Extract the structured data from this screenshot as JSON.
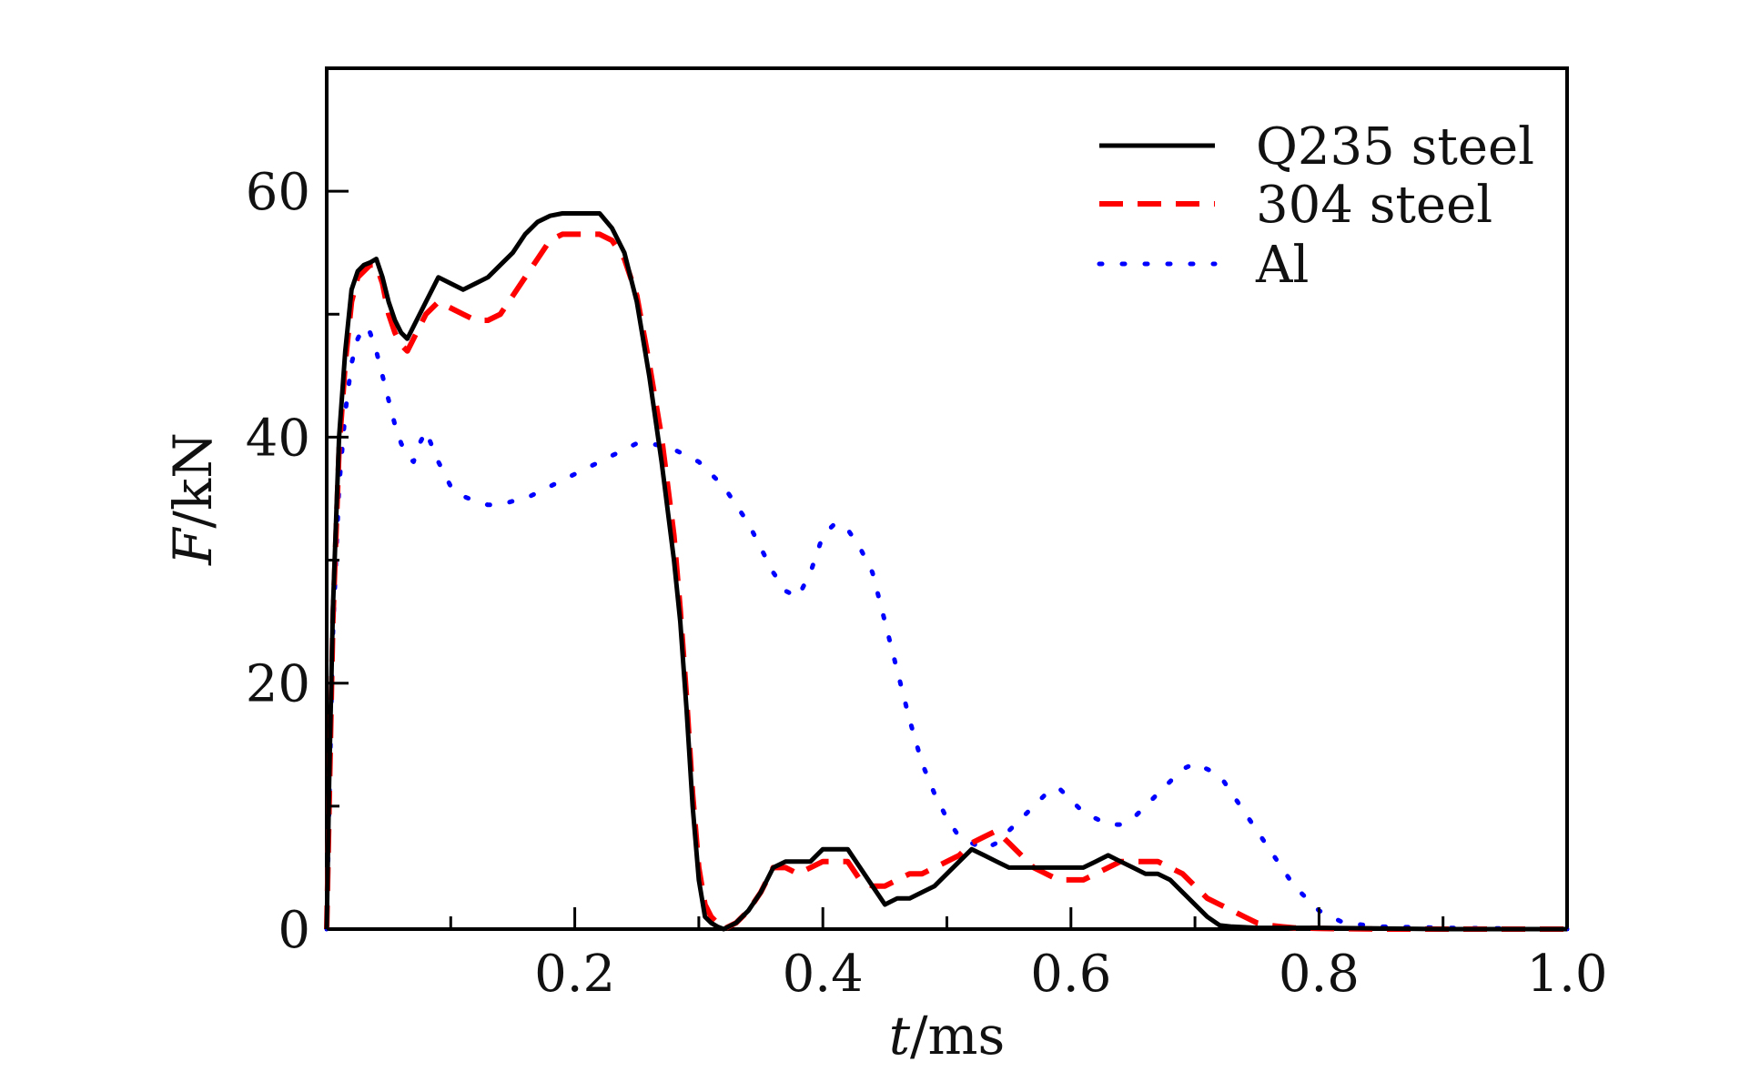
{
  "chart_data": {
    "type": "line",
    "xlabel_italic": "t",
    "xlabel_unit": "/ms",
    "ylabel_italic": "F",
    "ylabel_unit": "/kN",
    "xlim": [
      0,
      1.0
    ],
    "ylim": [
      0,
      70
    ],
    "x_ticks": [
      0.2,
      0.4,
      0.6,
      0.8,
      1.0
    ],
    "x_tick_labels": [
      "0.2",
      "0.4",
      "0.6",
      "0.8",
      "1.0"
    ],
    "y_ticks": [
      0,
      20,
      40,
      60
    ],
    "y_tick_labels": [
      "0",
      "20",
      "40",
      "60"
    ],
    "x_minor_ticks": [
      0.1,
      0.3,
      0.5,
      0.7,
      0.9
    ],
    "y_minor_ticks": [
      10,
      30,
      50
    ],
    "grid": false,
    "legend_position": "top-right",
    "series": [
      {
        "name": "Q235 steel",
        "color": "#000000",
        "style": "solid",
        "x": [
          0,
          0.002,
          0.005,
          0.01,
          0.015,
          0.02,
          0.025,
          0.03,
          0.035,
          0.04,
          0.045,
          0.05,
          0.055,
          0.06,
          0.065,
          0.07,
          0.075,
          0.08,
          0.09,
          0.1,
          0.11,
          0.12,
          0.13,
          0.14,
          0.15,
          0.16,
          0.17,
          0.18,
          0.19,
          0.2,
          0.21,
          0.22,
          0.23,
          0.24,
          0.25,
          0.26,
          0.27,
          0.28,
          0.285,
          0.29,
          0.295,
          0.3,
          0.305,
          0.31,
          0.315,
          0.32,
          0.33,
          0.34,
          0.35,
          0.36,
          0.37,
          0.38,
          0.39,
          0.4,
          0.41,
          0.42,
          0.43,
          0.44,
          0.45,
          0.46,
          0.47,
          0.48,
          0.49,
          0.5,
          0.51,
          0.52,
          0.53,
          0.54,
          0.55,
          0.56,
          0.57,
          0.58,
          0.59,
          0.6,
          0.61,
          0.62,
          0.63,
          0.64,
          0.65,
          0.66,
          0.67,
          0.68,
          0.69,
          0.7,
          0.71,
          0.72,
          0.73,
          0.75,
          0.8,
          0.85,
          0.9,
          1.0
        ],
        "values": [
          0,
          12,
          26,
          40,
          47,
          52,
          53.5,
          54,
          54.2,
          54.5,
          53,
          51,
          49.5,
          48.5,
          48,
          49,
          50,
          51,
          53,
          52.5,
          52,
          52.5,
          53,
          54,
          55,
          56.5,
          57.5,
          58,
          58.2,
          58.2,
          58.2,
          58.2,
          57,
          55,
          51,
          45,
          38,
          30,
          25,
          18,
          10,
          4,
          1,
          0.5,
          0.2,
          0,
          0.5,
          1.5,
          3,
          5,
          5.5,
          5.5,
          5.5,
          6.5,
          6.5,
          6.5,
          5,
          3.5,
          2,
          2.5,
          2.5,
          3,
          3.5,
          4.5,
          5.5,
          6.5,
          6,
          5.5,
          5,
          5,
          5,
          5,
          5,
          5,
          5,
          5.5,
          6,
          5.5,
          5,
          4.5,
          4.5,
          4,
          3,
          2,
          1,
          0.3,
          0.2,
          0.1,
          0.1,
          0.05,
          0,
          0
        ]
      },
      {
        "name": "304 steel",
        "color": "#ff0000",
        "style": "dashed",
        "x": [
          0,
          0.002,
          0.005,
          0.01,
          0.015,
          0.02,
          0.025,
          0.03,
          0.035,
          0.04,
          0.045,
          0.05,
          0.055,
          0.06,
          0.065,
          0.07,
          0.075,
          0.08,
          0.09,
          0.1,
          0.11,
          0.12,
          0.13,
          0.14,
          0.15,
          0.16,
          0.17,
          0.18,
          0.19,
          0.2,
          0.21,
          0.22,
          0.23,
          0.24,
          0.25,
          0.26,
          0.27,
          0.28,
          0.285,
          0.29,
          0.295,
          0.3,
          0.305,
          0.31,
          0.315,
          0.32,
          0.33,
          0.34,
          0.35,
          0.36,
          0.37,
          0.38,
          0.39,
          0.4,
          0.41,
          0.42,
          0.43,
          0.44,
          0.45,
          0.46,
          0.47,
          0.48,
          0.49,
          0.5,
          0.51,
          0.52,
          0.53,
          0.54,
          0.55,
          0.56,
          0.57,
          0.58,
          0.59,
          0.6,
          0.61,
          0.62,
          0.63,
          0.64,
          0.65,
          0.66,
          0.67,
          0.68,
          0.69,
          0.7,
          0.71,
          0.72,
          0.73,
          0.74,
          0.75,
          0.76,
          0.77,
          0.78,
          0.8,
          0.85,
          0.9,
          1.0
        ],
        "values": [
          0,
          10,
          25,
          39,
          46,
          51,
          53,
          53.5,
          54,
          54,
          52.5,
          50,
          48.5,
          47.5,
          47,
          48,
          49,
          50,
          51,
          50.5,
          50,
          49.5,
          49.5,
          50,
          51.5,
          53,
          54.5,
          56,
          56.5,
          56.5,
          56.5,
          56.5,
          56,
          54.5,
          51.5,
          46,
          40,
          32,
          26,
          19,
          11,
          5,
          2,
          1,
          0.5,
          0,
          0.5,
          1.5,
          3,
          5,
          5,
          4.5,
          5,
          5.5,
          5.5,
          5.5,
          4,
          3.5,
          3.5,
          4,
          4.5,
          4.5,
          5,
          5.5,
          6,
          7,
          7.5,
          8,
          7,
          6,
          5,
          4.5,
          4,
          4,
          4,
          4.5,
          5,
          5.5,
          5.5,
          5.5,
          5.5,
          5,
          4.5,
          3.5,
          2.5,
          2,
          1.5,
          1,
          0.5,
          0.3,
          0.2,
          0.1,
          0.05,
          0,
          0,
          0
        ]
      },
      {
        "name": "Al",
        "color": "#0000ff",
        "style": "dotted",
        "x": [
          0,
          0.002,
          0.005,
          0.01,
          0.015,
          0.02,
          0.025,
          0.03,
          0.035,
          0.04,
          0.045,
          0.05,
          0.055,
          0.06,
          0.065,
          0.07,
          0.075,
          0.08,
          0.09,
          0.1,
          0.11,
          0.12,
          0.13,
          0.14,
          0.15,
          0.16,
          0.17,
          0.18,
          0.19,
          0.2,
          0.21,
          0.22,
          0.23,
          0.24,
          0.25,
          0.26,
          0.27,
          0.28,
          0.29,
          0.3,
          0.31,
          0.32,
          0.33,
          0.34,
          0.35,
          0.36,
          0.37,
          0.38,
          0.39,
          0.4,
          0.41,
          0.42,
          0.43,
          0.44,
          0.45,
          0.46,
          0.47,
          0.48,
          0.49,
          0.5,
          0.51,
          0.52,
          0.53,
          0.54,
          0.55,
          0.56,
          0.57,
          0.58,
          0.59,
          0.6,
          0.61,
          0.62,
          0.63,
          0.64,
          0.65,
          0.66,
          0.67,
          0.68,
          0.69,
          0.7,
          0.71,
          0.72,
          0.73,
          0.74,
          0.75,
          0.76,
          0.77,
          0.78,
          0.79,
          0.8,
          0.82,
          0.85,
          0.9,
          1.0
        ],
        "values": [
          0,
          10,
          24,
          36,
          42,
          46,
          48,
          49,
          48.5,
          47,
          45,
          43,
          41,
          39.5,
          38.5,
          38,
          39.5,
          40.5,
          38,
          36,
          35.2,
          34.8,
          34.5,
          34.5,
          34.8,
          35,
          35.5,
          36,
          36.5,
          37,
          37.5,
          38,
          38.5,
          39,
          39.5,
          39.5,
          39.3,
          39,
          38.5,
          38,
          37,
          36,
          34.5,
          33,
          31,
          29,
          27.5,
          27,
          29,
          32,
          33,
          32.5,
          31,
          29,
          25,
          21,
          17,
          13.5,
          11,
          9,
          7.5,
          7,
          6.5,
          7,
          8,
          9,
          10,
          11,
          11.5,
          10.5,
          9.5,
          9,
          8.5,
          8.5,
          9,
          10,
          11,
          12,
          13,
          13.5,
          13,
          12.5,
          11,
          9.5,
          8,
          6.5,
          5,
          3.5,
          2.5,
          1.5,
          0.5,
          0.2,
          0.1,
          0
        ]
      }
    ]
  }
}
